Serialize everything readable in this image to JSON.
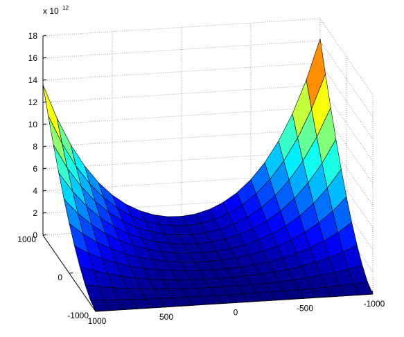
{
  "chart_data": {
    "type": "surface",
    "title": "",
    "xlabel": "",
    "ylabel": "",
    "zlabel": "",
    "z_exponent_base": "x 10",
    "z_exponent_power": "12",
    "colormap": "jet",
    "grid": true,
    "x_ticks": [
      "1000",
      "500",
      "0",
      "-500",
      "-1000"
    ],
    "y_ticks": [
      "1000",
      "0",
      "-1000"
    ],
    "z_ticks": [
      "0",
      "2",
      "4",
      "6",
      "8",
      "10",
      "12",
      "14",
      "16",
      "18"
    ],
    "x_range": [
      -1000,
      1000
    ],
    "y_range": [
      -1000,
      1000
    ],
    "z_range": [
      0,
      18
    ],
    "grid_resolution": [
      11,
      21
    ],
    "peaks": [
      {
        "x": -1000,
        "y": 1000,
        "z": 16.2
      },
      {
        "x": 1000,
        "y": 1000,
        "z": 13.6
      }
    ]
  }
}
